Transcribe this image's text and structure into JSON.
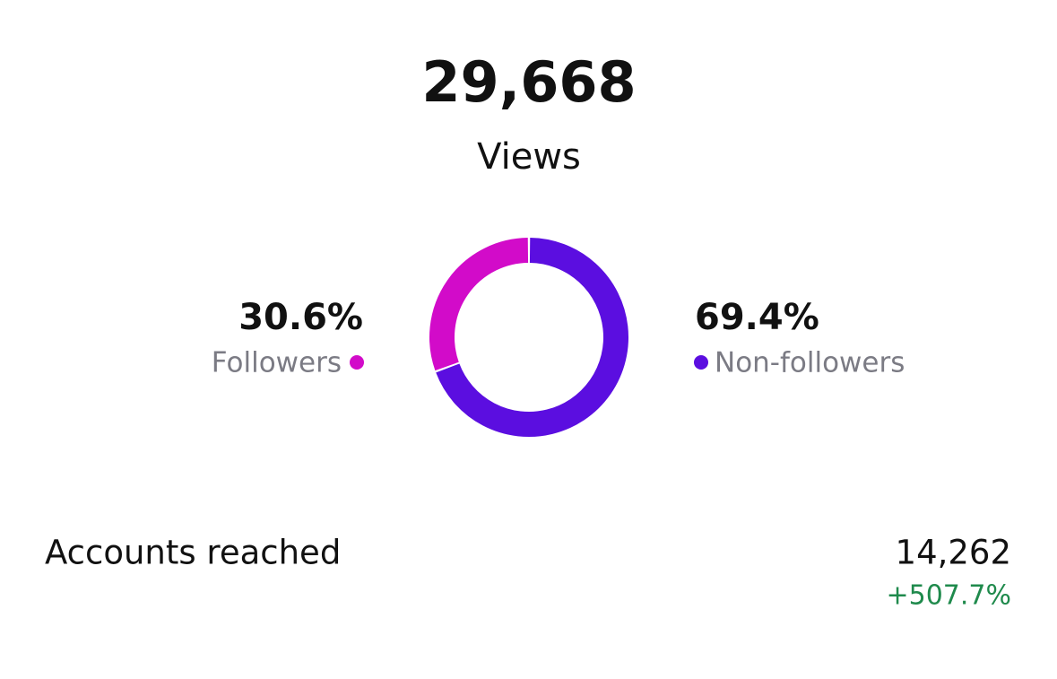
{
  "views": {
    "value": "29,668",
    "label": "Views"
  },
  "chart_data": {
    "type": "pie",
    "categories": [
      "Followers",
      "Non-followers"
    ],
    "values": [
      30.6,
      69.4
    ],
    "value_labels": [
      "30.6%",
      "69.4%"
    ],
    "colors": [
      "#d20bc9",
      "#5b0ee0"
    ]
  },
  "accounts_reached": {
    "label": "Accounts reached",
    "value": "14,262",
    "change": "+507.7%"
  }
}
